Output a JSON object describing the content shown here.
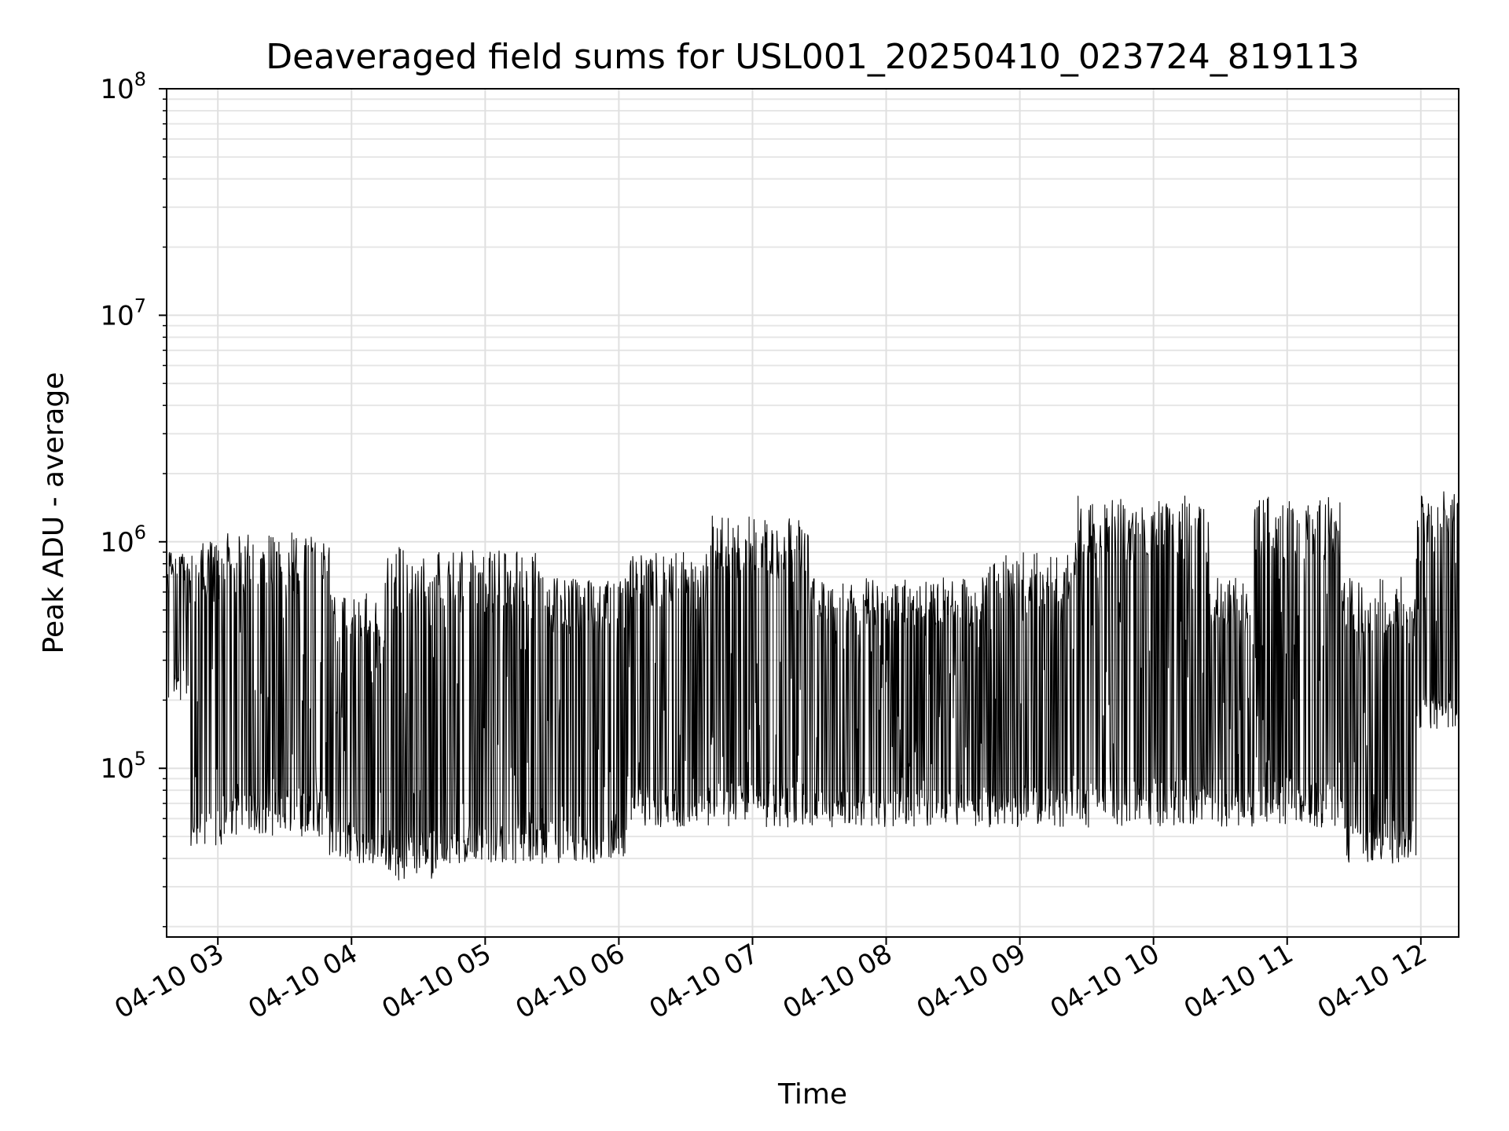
{
  "chart_data": {
    "type": "line",
    "title": "Deaveraged field sums for USL001_20250410_023724_819113",
    "xlabel": "Time",
    "ylabel": "Peak ADU - average",
    "yscale": "log",
    "ylim": [
      18000,
      100000000
    ],
    "xlim": [
      "04-10 02:37",
      "04-10 12:17"
    ],
    "grid": true,
    "x_tick_labels": [
      "04-10 03",
      "04-10 04",
      "04-10 05",
      "04-10 06",
      "04-10 07",
      "04-10 08",
      "04-10 09",
      "04-10 10",
      "04-10 11",
      "04-10 12"
    ],
    "y_tick_labels": [
      {
        "value": 100000,
        "base": "10",
        "exp": "5"
      },
      {
        "value": 1000000,
        "base": "10",
        "exp": "6"
      },
      {
        "value": 10000000,
        "base": "10",
        "exp": "7"
      },
      {
        "value": 100000000,
        "base": "10",
        "exp": "8"
      }
    ],
    "line_color": "#000000",
    "series": [
      {
        "segments": [
          {
            "start": "04-10 02:37",
            "end": "04-10 02:47",
            "low": 200000,
            "high": 900000
          },
          {
            "start": "04-10 02:47",
            "end": "04-10 03:02",
            "low": 45000,
            "high": 1000000
          },
          {
            "start": "04-10 03:02",
            "end": "04-10 03:50",
            "low": 50000,
            "high": 1100000
          },
          {
            "start": "04-10 03:50",
            "end": "04-10 04:15",
            "low": 38000,
            "high": 600000
          },
          {
            "start": "04-10 04:15",
            "end": "04-10 04:40",
            "low": 32000,
            "high": 950000
          },
          {
            "start": "04-10 04:40",
            "end": "04-10 05:25",
            "low": 38000,
            "high": 920000
          },
          {
            "start": "04-10 05:25",
            "end": "04-10 06:05",
            "low": 38000,
            "high": 700000
          },
          {
            "start": "04-10 06:05",
            "end": "04-10 06:40",
            "low": 55000,
            "high": 900000
          },
          {
            "start": "04-10 06:40",
            "end": "04-10 07:25",
            "low": 55000,
            "high": 1300000
          },
          {
            "start": "04-10 07:25",
            "end": "04-10 08:45",
            "low": 55000,
            "high": 700000
          },
          {
            "start": "04-10 08:45",
            "end": "04-10 09:25",
            "low": 55000,
            "high": 900000
          },
          {
            "start": "04-10 09:25",
            "end": "04-10 10:25",
            "low": 55000,
            "high": 1600000
          },
          {
            "start": "04-10 10:25",
            "end": "04-10 10:45",
            "low": 55000,
            "high": 700000
          },
          {
            "start": "04-10 10:45",
            "end": "04-10 11:25",
            "low": 55000,
            "high": 1600000
          },
          {
            "start": "04-10 11:25",
            "end": "04-10 11:58",
            "low": 38000,
            "high": 700000
          },
          {
            "start": "04-10 11:58",
            "end": "04-10 12:17",
            "low": 150000,
            "high": 1700000
          }
        ]
      }
    ]
  }
}
